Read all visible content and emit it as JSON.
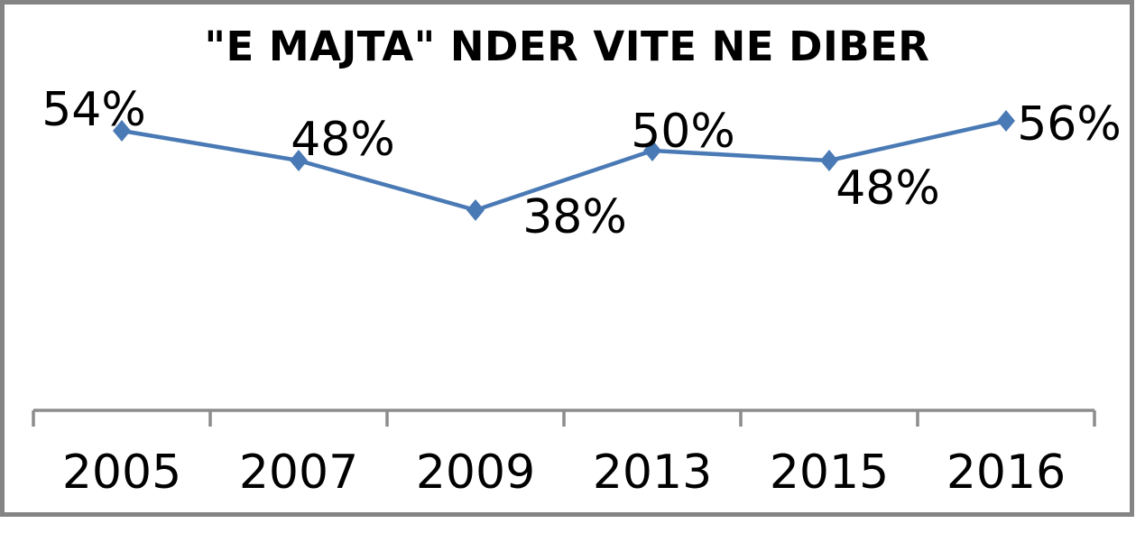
{
  "chart_data": {
    "type": "line",
    "title": "\"E MAJTA\" NDER VITE NE DIBER",
    "categories": [
      "2005",
      "2007",
      "2009",
      "2013",
      "2015",
      "2016"
    ],
    "series": [
      {
        "name": "E Majta",
        "values": [
          54,
          48,
          38,
          50,
          48,
          56
        ],
        "data_labels": [
          "54%",
          "48%",
          "38%",
          "50%",
          "48%",
          "56%"
        ]
      }
    ],
    "unit": "%",
    "xlabel": "",
    "ylabel": "",
    "y_axis_visible": false,
    "x_axis_visible": true,
    "grid": false,
    "legend_position": "none",
    "marker_shape": "diamond",
    "colors": {
      "line": "#4A7AB5",
      "marker": "#4A7AB5",
      "axis": "#8C8C8C",
      "frame_border": "#848484",
      "title_text": "#000000",
      "label_text": "#000000",
      "background": "#FFFFFF"
    }
  }
}
